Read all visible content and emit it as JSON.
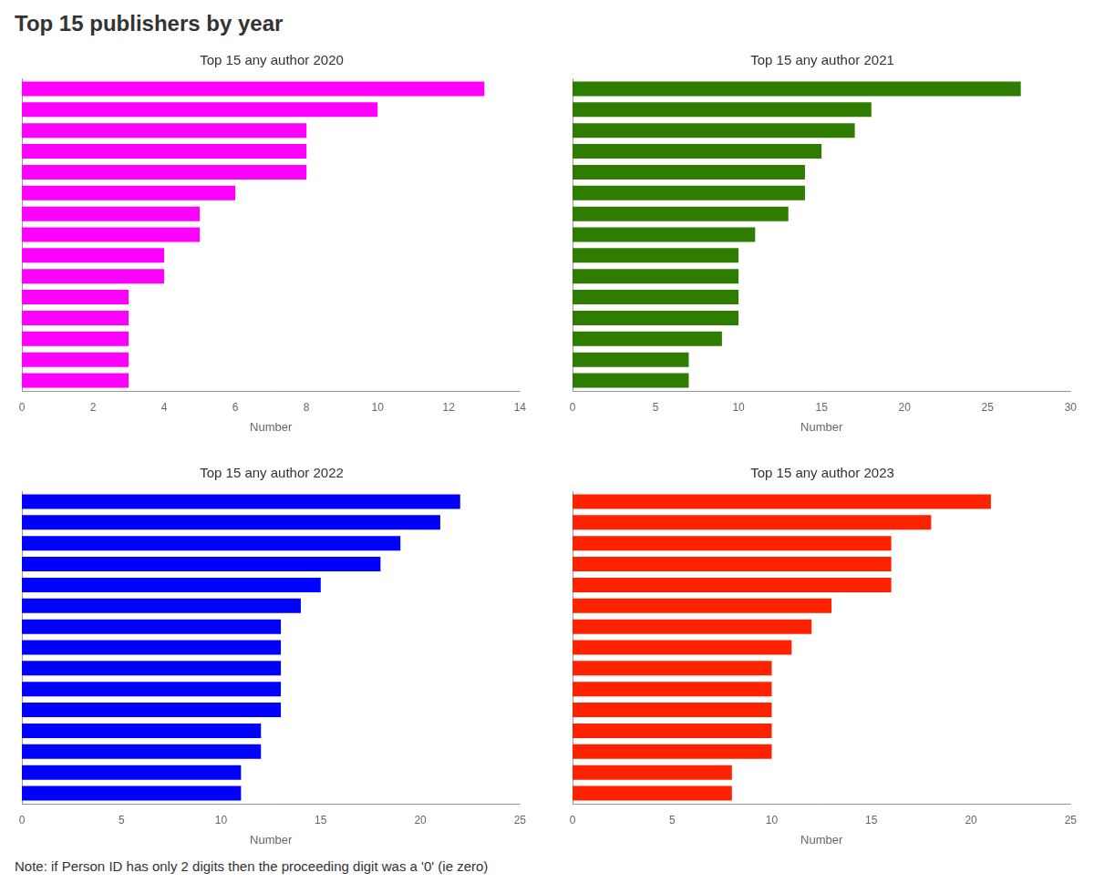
{
  "title": "Top 15 publishers by year",
  "annotations": [
    "Note: if Person ID has only 2 digits then the proceeding digit was a '0' (ie zero)"
  ],
  "chart_data": [
    {
      "type": "bar",
      "orientation": "horizontal",
      "title": "Top 15 any author 2020",
      "categories": [
        null,
        null,
        null,
        null,
        null,
        null,
        null,
        null,
        null,
        null,
        null,
        null,
        null,
        null,
        null
      ],
      "values": [
        13,
        10,
        8,
        8,
        8,
        6,
        5,
        5,
        4,
        4,
        3,
        3,
        3,
        3,
        3
      ],
      "color": "#FF00FF",
      "xlabel": "Number",
      "xlim": [
        0,
        14
      ],
      "xticks": [
        0,
        2,
        4,
        6,
        8,
        10,
        12,
        14
      ],
      "grid": false,
      "tick_labels": "x"
    },
    {
      "type": "bar",
      "orientation": "horizontal",
      "title": "Top 15 any author 2021",
      "categories": [
        null,
        null,
        null,
        null,
        null,
        null,
        null,
        null,
        null,
        null,
        null,
        null,
        null,
        null,
        null
      ],
      "values": [
        27,
        18,
        17,
        15,
        14,
        14,
        13,
        11,
        10,
        10,
        10,
        10,
        9,
        7,
        7
      ],
      "color": "#2E7D00",
      "xlabel": "Number",
      "xlim": [
        0,
        30
      ],
      "xticks": [
        0,
        5,
        10,
        15,
        20,
        25,
        30
      ],
      "grid": false,
      "tick_labels": "x"
    },
    {
      "type": "bar",
      "orientation": "horizontal",
      "title": "Top 15 any author 2022",
      "categories": [
        null,
        null,
        null,
        null,
        null,
        null,
        null,
        null,
        null,
        null,
        null,
        null,
        null,
        null,
        null
      ],
      "values": [
        22,
        21,
        19,
        18,
        15,
        14,
        13,
        13,
        13,
        13,
        13,
        12,
        12,
        11,
        11
      ],
      "color": "#0000FF",
      "xlabel": "Number",
      "xlim": [
        0,
        25
      ],
      "xticks": [
        0,
        5,
        10,
        15,
        20,
        25
      ],
      "grid": false,
      "tick_labels": "x"
    },
    {
      "type": "bar",
      "orientation": "horizontal",
      "title": "Top 15 any author 2023",
      "categories": [
        null,
        null,
        null,
        null,
        null,
        null,
        null,
        null,
        null,
        null,
        null,
        null,
        null,
        null,
        null
      ],
      "values": [
        21,
        18,
        16,
        16,
        16,
        13,
        12,
        11,
        10,
        10,
        10,
        10,
        10,
        8,
        8
      ],
      "color": "#FF2200",
      "xlabel": "Number",
      "xlim": [
        0,
        25
      ],
      "xticks": [
        0,
        5,
        10,
        15,
        20,
        25
      ],
      "grid": false,
      "tick_labels": "x"
    }
  ]
}
